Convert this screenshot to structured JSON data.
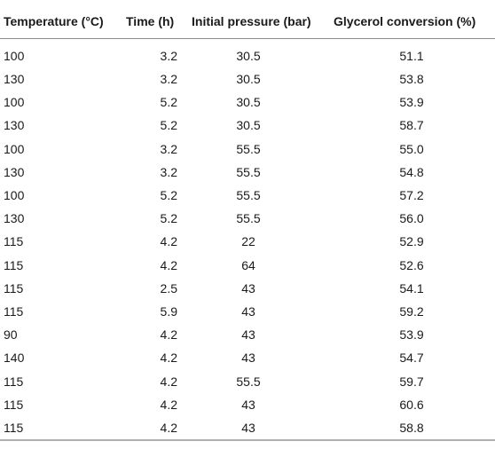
{
  "table": {
    "headers": {
      "temperature": "Temperature (°C)",
      "time": "Time (h)",
      "pressure": "Initial pressure (bar)",
      "conversion": "Glycerol conversion (%)"
    },
    "rows": [
      [
        "100",
        "3.2",
        "30.5",
        "51.1"
      ],
      [
        "130",
        "3.2",
        "30.5",
        "53.8"
      ],
      [
        "100",
        "5.2",
        "30.5",
        "53.9"
      ],
      [
        "130",
        "5.2",
        "30.5",
        "58.7"
      ],
      [
        "100",
        "3.2",
        "55.5",
        "55.0"
      ],
      [
        "130",
        "3.2",
        "55.5",
        "54.8"
      ],
      [
        "100",
        "5.2",
        "55.5",
        "57.2"
      ],
      [
        "130",
        "5.2",
        "55.5",
        "56.0"
      ],
      [
        "115",
        "4.2",
        "22",
        "52.9"
      ],
      [
        "115",
        "4.2",
        "64",
        "52.6"
      ],
      [
        "115",
        "2.5",
        "43",
        "54.1"
      ],
      [
        "115",
        "5.9",
        "43",
        "59.2"
      ],
      [
        "90",
        "4.2",
        "43",
        "53.9"
      ],
      [
        "140",
        "4.2",
        "43",
        "54.7"
      ],
      [
        "115",
        "4.2",
        "55.5",
        "59.7"
      ],
      [
        "115",
        "4.2",
        "43",
        "60.6"
      ],
      [
        "115",
        "4.2",
        "43",
        "58.8"
      ]
    ]
  }
}
